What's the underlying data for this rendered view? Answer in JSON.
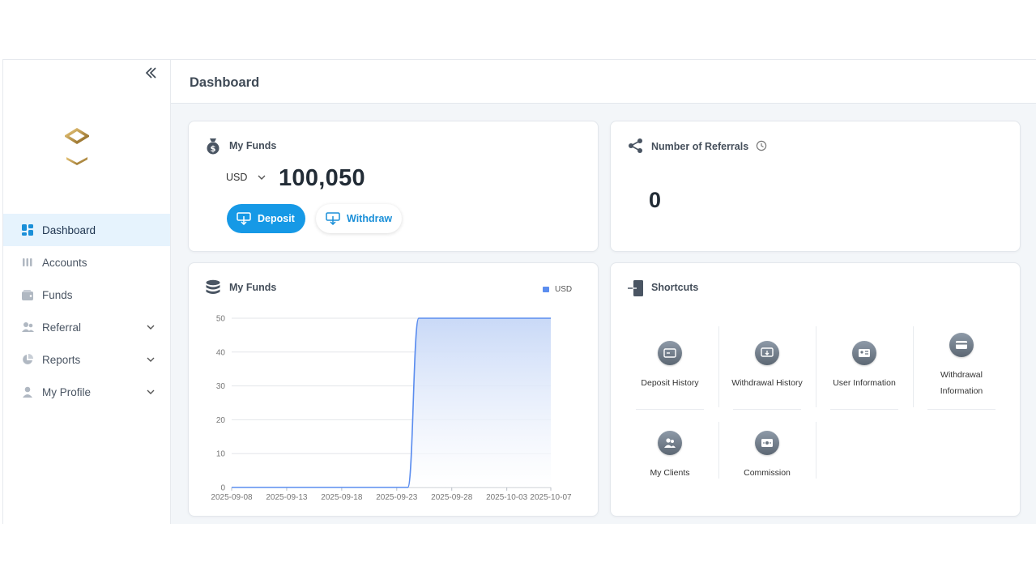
{
  "header": {
    "title": "Dashboard"
  },
  "sidebar": {
    "items": [
      {
        "label": "Dashboard",
        "icon": "dashboard-icon",
        "active": true
      },
      {
        "label": "Accounts",
        "icon": "accounts-icon"
      },
      {
        "label": "Funds",
        "icon": "wallet-icon"
      },
      {
        "label": "Referral",
        "icon": "referral-icon",
        "expandable": true
      },
      {
        "label": "Reports",
        "icon": "pie-chart-icon",
        "expandable": true
      },
      {
        "label": "My Profile",
        "icon": "user-icon",
        "expandable": true
      }
    ]
  },
  "funds": {
    "title": "My Funds",
    "currency": "USD",
    "balance": "100,050",
    "deposit_label": "Deposit",
    "withdraw_label": "Withdraw"
  },
  "referrals": {
    "title": "Number of Referrals",
    "value": "0"
  },
  "chart_card": {
    "title": "My Funds",
    "legend": "USD"
  },
  "chart_data": {
    "type": "area",
    "series": [
      {
        "name": "USD",
        "color": "#5b8def"
      }
    ],
    "x_ticks": [
      "2025-09-08",
      "2025-09-13",
      "2025-09-18",
      "2025-09-23",
      "2025-09-28",
      "2025-10-03",
      "2025-10-07"
    ],
    "y_ticks": [
      0,
      10,
      20,
      30,
      40,
      50
    ],
    "ylim": [
      0,
      50
    ],
    "xlim": [
      "2025-09-08",
      "2025-10-07"
    ],
    "points": [
      {
        "x": "2025-09-08",
        "y": 0
      },
      {
        "x": "2025-09-24",
        "y": 0
      },
      {
        "x": "2025-09-25",
        "y": 50
      },
      {
        "x": "2025-10-07",
        "y": 50
      }
    ],
    "grid": true,
    "legend_position": "top-right"
  },
  "shortcuts": {
    "title": "Shortcuts",
    "items": [
      {
        "label": "Deposit History",
        "icon": "deposit-history-icon"
      },
      {
        "label": "Withdrawal History",
        "icon": "withdrawal-history-icon"
      },
      {
        "label": "User Information",
        "icon": "id-card-icon"
      },
      {
        "label": "Withdrawal Information",
        "icon": "card-icon"
      },
      {
        "label": "My Clients",
        "icon": "clients-icon"
      },
      {
        "label": "Commission",
        "icon": "commission-icon"
      }
    ]
  },
  "colors": {
    "accent": "#1699e6",
    "active_nav_bg": "#e6f3fd",
    "chart_line": "#5b8def"
  }
}
